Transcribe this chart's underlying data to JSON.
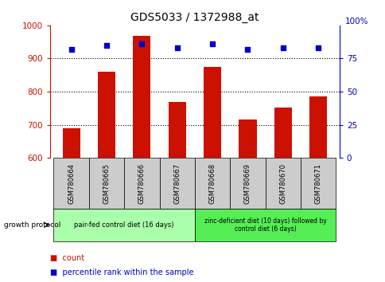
{
  "title": "GDS5033 / 1372988_at",
  "samples": [
    "GSM780664",
    "GSM780665",
    "GSM780666",
    "GSM780667",
    "GSM780668",
    "GSM780669",
    "GSM780670",
    "GSM780671"
  ],
  "counts": [
    690,
    860,
    968,
    770,
    875,
    715,
    752,
    785
  ],
  "percentiles": [
    82,
    85,
    86,
    83,
    86,
    82,
    83,
    83
  ],
  "ylim_left": [
    600,
    1000
  ],
  "ylim_right": [
    0,
    100
  ],
  "yticks_left": [
    600,
    700,
    800,
    900,
    1000
  ],
  "yticks_right": [
    0,
    25,
    50,
    75
  ],
  "right_top_label": "100%",
  "bar_color": "#cc1100",
  "dot_color": "#0000cc",
  "grid_color": "#000000",
  "left_axis_color": "#cc1100",
  "right_axis_color": "#0000cc",
  "group1_label": "pair-fed control diet (16 days)",
  "group2_label": "zinc-deficient diet (10 days) followed by\ncontrol diet (6 days)",
  "group1_color": "#aaffaa",
  "group2_color": "#55ee55",
  "group1_indices": [
    0,
    1,
    2,
    3
  ],
  "group2_indices": [
    4,
    5,
    6,
    7
  ],
  "sample_box_color": "#cccccc",
  "legend_count_label": "count",
  "legend_percentile_label": "percentile rank within the sample",
  "growth_protocol_label": "growth protocol"
}
